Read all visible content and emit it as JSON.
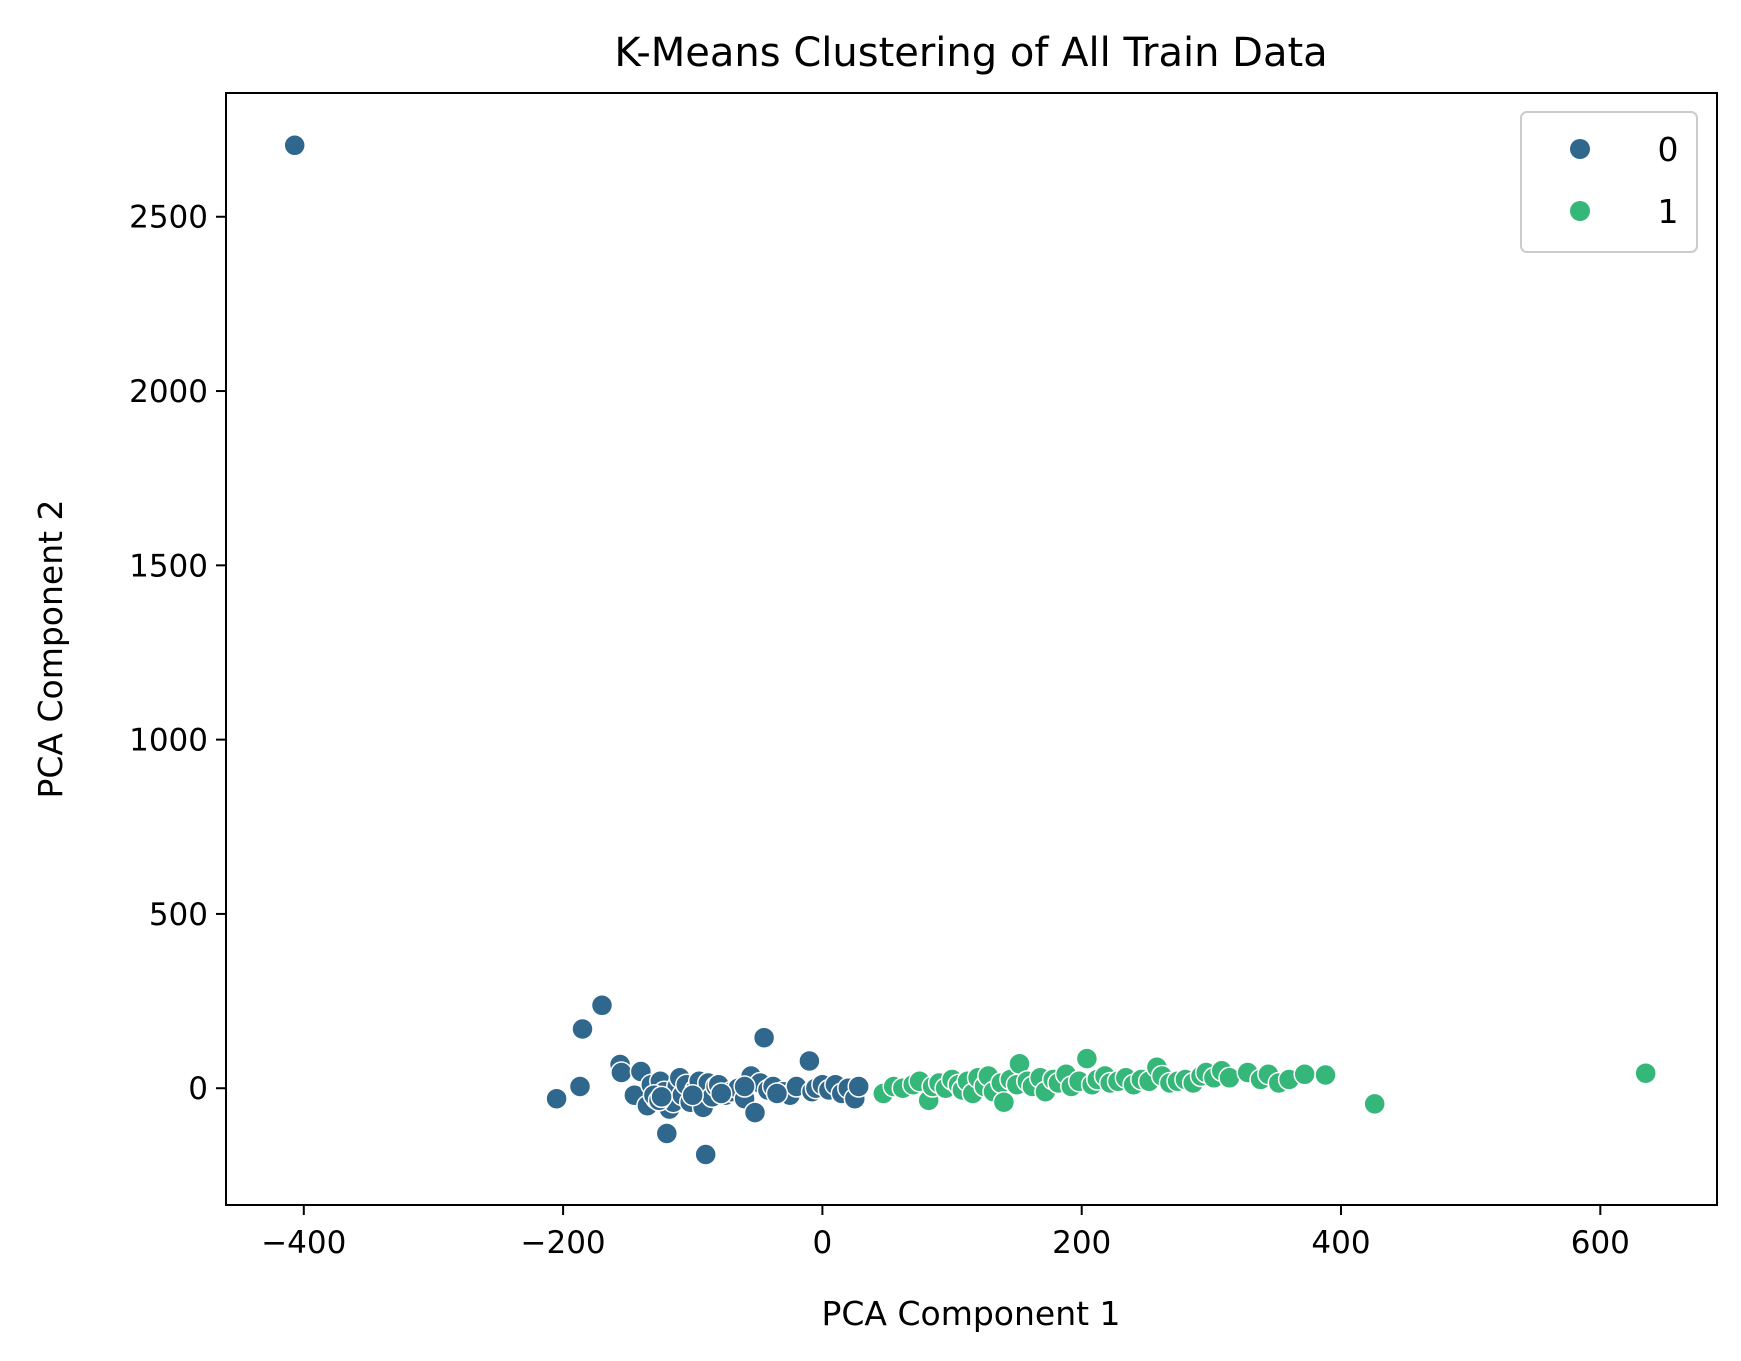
{
  "chart_data": {
    "type": "scatter",
    "title": "K-Means Clustering of All Train Data",
    "xlabel": "PCA Component 1",
    "ylabel": "PCA Component 2",
    "xlim": [
      -460,
      690
    ],
    "ylim": [
      -335,
      2855
    ],
    "xticks": [
      -400,
      -200,
      0,
      200,
      400,
      600
    ],
    "yticks": [
      0,
      500,
      1000,
      1500,
      2000,
      2500
    ],
    "xtick_labels": [
      "−400",
      "−200",
      "0",
      "200",
      "400",
      "600"
    ],
    "ytick_labels": [
      "0",
      "500",
      "1000",
      "1500",
      "2000",
      "2500"
    ],
    "grid": false,
    "legend_position": "top-right",
    "colors": {
      "0": "#30678d",
      "1": "#35b779"
    },
    "series": [
      {
        "name": "0",
        "color": "#30678d",
        "points": [
          [
            -407,
            2705
          ],
          [
            -170,
            238
          ],
          [
            -185,
            170
          ],
          [
            -205,
            -30
          ],
          [
            -187,
            5
          ],
          [
            -156,
            68
          ],
          [
            -155,
            45
          ],
          [
            -140,
            48
          ],
          [
            -145,
            -20
          ],
          [
            -135,
            -50
          ],
          [
            -132,
            10
          ],
          [
            -128,
            -30
          ],
          [
            -125,
            20
          ],
          [
            -122,
            -10
          ],
          [
            -120,
            -130
          ],
          [
            -118,
            -60
          ],
          [
            -115,
            -40
          ],
          [
            -112,
            5
          ],
          [
            -110,
            30
          ],
          [
            -108,
            -20
          ],
          [
            -105,
            10
          ],
          [
            -102,
            -40
          ],
          [
            -98,
            -5
          ],
          [
            -95,
            20
          ],
          [
            -92,
            -55
          ],
          [
            -90,
            -190
          ],
          [
            -88,
            15
          ],
          [
            -85,
            -25
          ],
          [
            -82,
            5
          ],
          [
            -80,
            10
          ],
          [
            -75,
            -20
          ],
          [
            -70,
            -10
          ],
          [
            -65,
            0
          ],
          [
            -60,
            -30
          ],
          [
            -55,
            35
          ],
          [
            -52,
            -70
          ],
          [
            -48,
            15
          ],
          [
            -45,
            145
          ],
          [
            -42,
            -5
          ],
          [
            -38,
            5
          ],
          [
            -30,
            -10
          ],
          [
            -25,
            -20
          ],
          [
            -20,
            5
          ],
          [
            -10,
            78
          ],
          [
            -8,
            -10
          ],
          [
            -5,
            0
          ],
          [
            0,
            10
          ],
          [
            5,
            -5
          ],
          [
            10,
            10
          ],
          [
            15,
            -15
          ],
          [
            20,
            0
          ],
          [
            25,
            -30
          ],
          [
            28,
            5
          ],
          [
            -130,
            -20
          ],
          [
            -126,
            -35
          ],
          [
            -124,
            -25
          ],
          [
            -100,
            -20
          ],
          [
            -78,
            -15
          ],
          [
            -60,
            5
          ],
          [
            -35,
            -15
          ]
        ]
      },
      {
        "name": "1",
        "color": "#35b779",
        "points": [
          [
            47,
            -15
          ],
          [
            55,
            5
          ],
          [
            62,
            0
          ],
          [
            70,
            10
          ],
          [
            75,
            20
          ],
          [
            82,
            -35
          ],
          [
            85,
            5
          ],
          [
            90,
            15
          ],
          [
            95,
            0
          ],
          [
            100,
            25
          ],
          [
            105,
            10
          ],
          [
            108,
            -5
          ],
          [
            112,
            20
          ],
          [
            116,
            -15
          ],
          [
            120,
            30
          ],
          [
            125,
            5
          ],
          [
            128,
            35
          ],
          [
            132,
            -10
          ],
          [
            138,
            15
          ],
          [
            140,
            -40
          ],
          [
            145,
            25
          ],
          [
            150,
            10
          ],
          [
            152,
            70
          ],
          [
            158,
            20
          ],
          [
            162,
            5
          ],
          [
            168,
            30
          ],
          [
            172,
            -10
          ],
          [
            178,
            25
          ],
          [
            182,
            15
          ],
          [
            188,
            40
          ],
          [
            192,
            5
          ],
          [
            198,
            20
          ],
          [
            204,
            85
          ],
          [
            208,
            10
          ],
          [
            212,
            25
          ],
          [
            218,
            35
          ],
          [
            222,
            15
          ],
          [
            228,
            20
          ],
          [
            234,
            30
          ],
          [
            240,
            10
          ],
          [
            246,
            25
          ],
          [
            252,
            20
          ],
          [
            258,
            60
          ],
          [
            262,
            35
          ],
          [
            268,
            15
          ],
          [
            274,
            20
          ],
          [
            280,
            25
          ],
          [
            286,
            15
          ],
          [
            292,
            35
          ],
          [
            296,
            45
          ],
          [
            302,
            30
          ],
          [
            308,
            50
          ],
          [
            314,
            30
          ],
          [
            328,
            45
          ],
          [
            338,
            25
          ],
          [
            344,
            40
          ],
          [
            352,
            15
          ],
          [
            360,
            25
          ],
          [
            372,
            40
          ],
          [
            388,
            38
          ],
          [
            426,
            -45
          ],
          [
            635,
            43
          ]
        ]
      }
    ]
  }
}
